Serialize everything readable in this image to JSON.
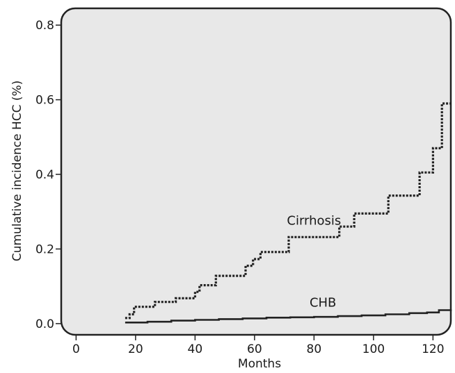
{
  "chart_data": {
    "type": "line",
    "title": "",
    "xlabel": "Months",
    "ylabel": "Cumulative incidence HCC (%)",
    "xlim": [
      -5,
      126
    ],
    "ylim": [
      -0.03,
      0.845
    ],
    "x_ticks": [
      0,
      20,
      40,
      60,
      80,
      100,
      120
    ],
    "x_tick_labels": [
      "0",
      "20",
      "40",
      "60",
      "80",
      "100",
      "120"
    ],
    "y_ticks": [
      0.0,
      0.2,
      0.4,
      0.6,
      0.8
    ],
    "y_tick_labels": [
      "0.0",
      "0.2",
      "0.4",
      "0.6",
      "0.8"
    ],
    "grid": false,
    "legend": "none",
    "background_color": "#e8e8e8",
    "series": [
      {
        "name": "Cirrhosis",
        "line_style": "dotted",
        "color": "#222222",
        "step": true,
        "x": [
          16.5,
          18,
          19.5,
          26.5,
          33.5,
          40,
          41.5,
          47,
          57,
          59.5,
          62,
          71.5,
          88.5,
          93.5,
          105,
          115.5,
          120,
          123,
          126
        ],
        "y": [
          0.015,
          0.025,
          0.045,
          0.058,
          0.068,
          0.085,
          0.103,
          0.128,
          0.155,
          0.173,
          0.192,
          0.232,
          0.26,
          0.295,
          0.343,
          0.405,
          0.47,
          0.59,
          0.59
        ]
      },
      {
        "name": "CHB",
        "line_style": "solid",
        "color": "#222222",
        "step": true,
        "x": [
          16.5,
          24,
          32,
          40,
          48,
          56,
          64,
          72,
          80,
          88,
          96,
          104,
          112,
          118,
          122,
          126
        ],
        "y": [
          0.003,
          0.005,
          0.008,
          0.01,
          0.012,
          0.014,
          0.016,
          0.017,
          0.018,
          0.02,
          0.022,
          0.025,
          0.028,
          0.03,
          0.036,
          0.038
        ]
      }
    ],
    "annotations": [
      {
        "text": "Cirrhosis",
        "x": 80,
        "y": 0.265
      },
      {
        "text": "CHB",
        "x": 83,
        "y": 0.045
      }
    ]
  }
}
